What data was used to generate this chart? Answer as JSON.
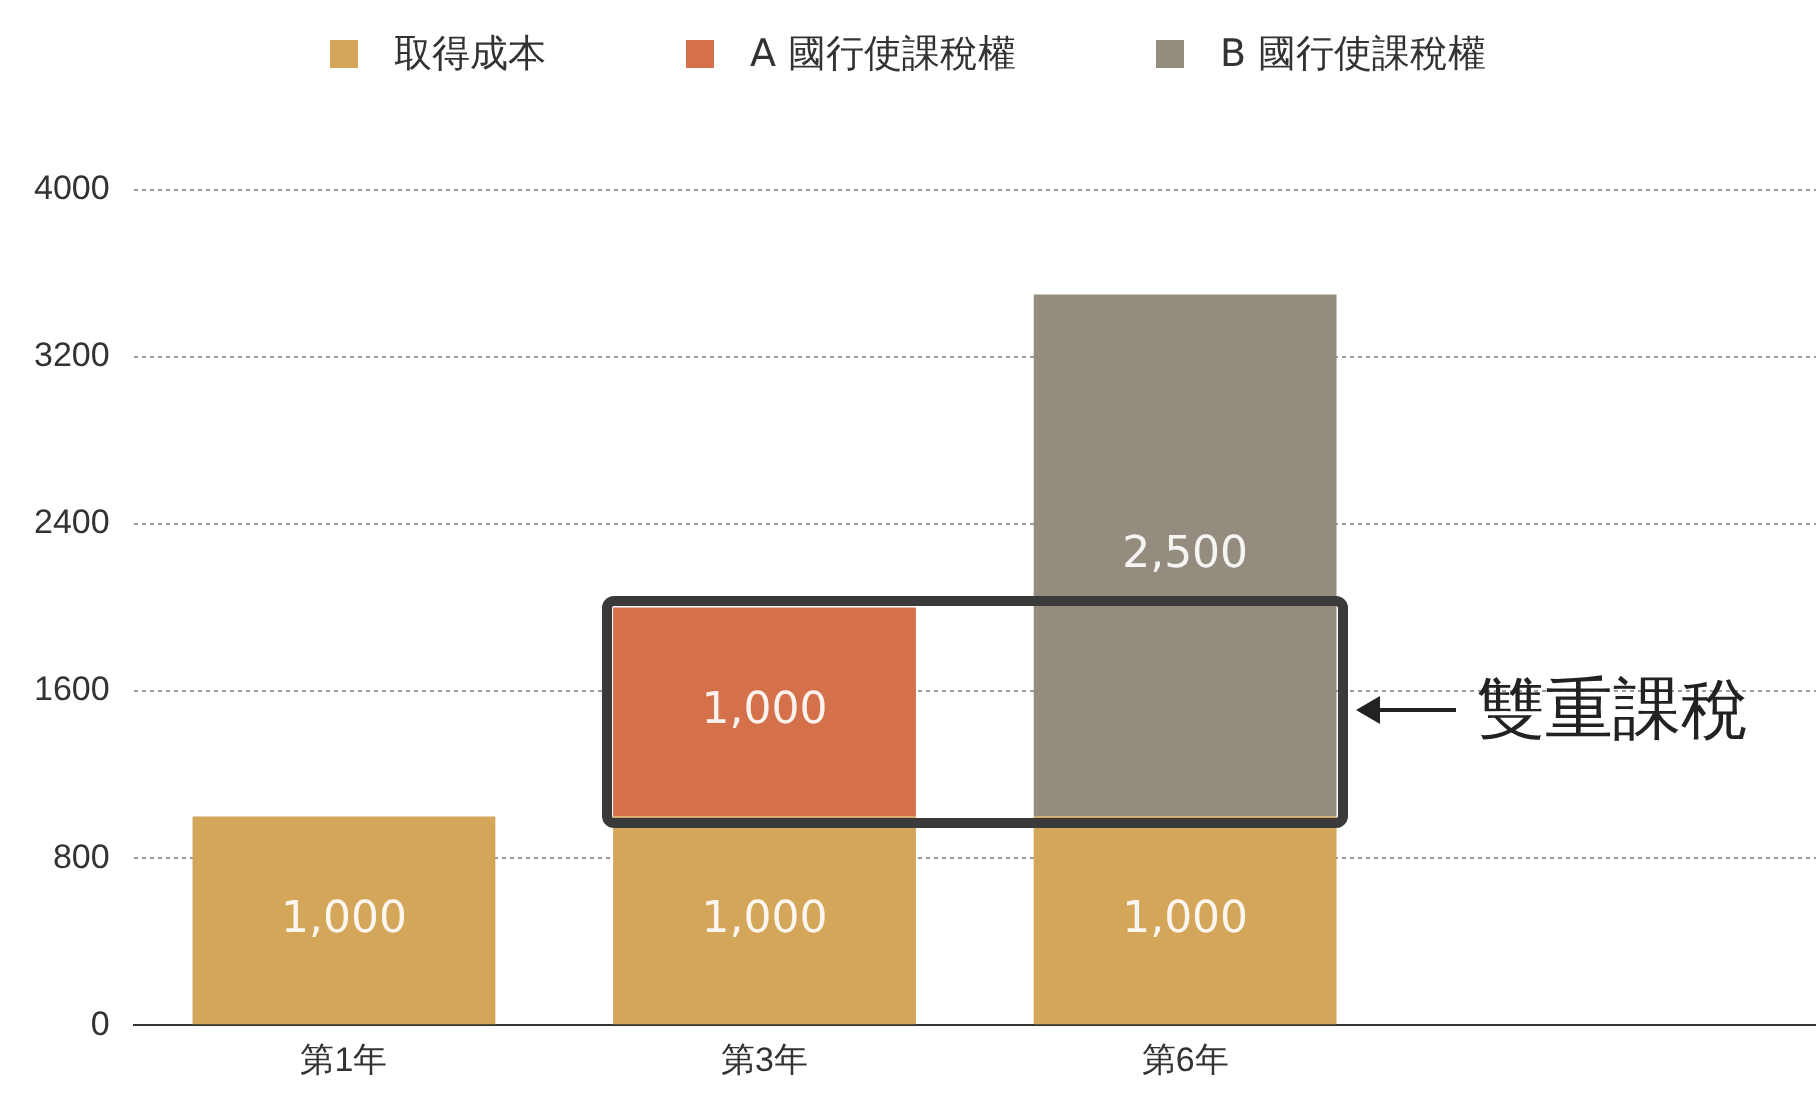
{
  "chart_data": {
    "type": "bar",
    "stacked": true,
    "categories": [
      "第1年",
      "第3年",
      "第6年",
      null
    ],
    "series": [
      {
        "name": "取得成本",
        "color": "#d4a65a",
        "values": [
          1000,
          1000,
          1000,
          null
        ],
        "value_labels": [
          "1,000",
          "1,000",
          "1,000",
          null
        ]
      },
      {
        "name": "A 國行使課稅權",
        "color": "#d4704a",
        "values": [
          null,
          1000,
          null,
          null
        ],
        "value_labels": [
          null,
          "1,000",
          null,
          null
        ]
      },
      {
        "name": "B 國行使課稅權",
        "color": "#958c80",
        "values": [
          null,
          null,
          2500,
          null
        ],
        "value_labels": [
          null,
          null,
          "2,500",
          null
        ]
      }
    ],
    "ylim": [
      0,
      4000
    ],
    "yticks": [
      0,
      800,
      1600,
      2400,
      3200,
      4000
    ],
    "grid": "y",
    "legend": "top",
    "annotations": [
      "雙重課稅"
    ]
  }
}
